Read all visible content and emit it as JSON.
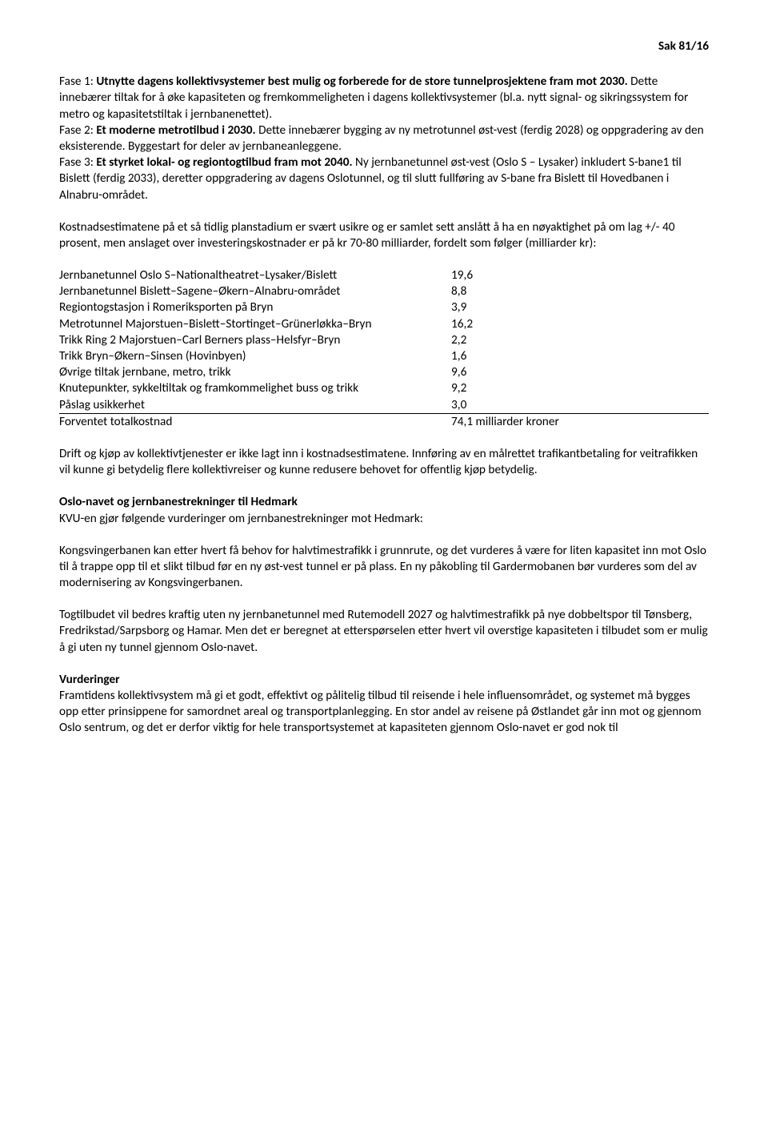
{
  "header": {
    "case_no": "Sak 81/16"
  },
  "p1": {
    "lead": "Fase 1: ",
    "bold1": "Utnytte dagens kollektivsystemer best mulig og forberede for de store tunnelprosjektene fram mot 2030.",
    "t1": " Dette innebærer tiltak for å øke kapasiteten og fremkommeligheten i dagens kollektivsystemer (bl.a. nytt signal- og sikringssystem for metro og kapasitetstiltak i jernbanenettet).",
    "br1": "Fase 2: ",
    "bold2": "Et moderne metrotilbud i 2030.",
    "t2": " Dette innebærer bygging av ny metrotunnel øst-vest (ferdig 2028) og oppgradering av den eksisterende. Byggestart for deler av jernbaneanleggene.",
    "br2": "Fase 3: ",
    "bold3": "Et styrket lokal- og regiontogtilbud fram mot 2040.",
    "t3": " Ny jernbanetunnel øst-vest (Oslo S – Lysaker) inkludert S-bane1 til Bislett (ferdig 2033), deretter oppgradering av dagens Oslotunnel, og til slutt fullføring av S-bane fra Bislett til Hovedbanen i Alnabru-området."
  },
  "p2": "Kostnadsestimatene på et så tidlig planstadium er svært usikre og er samlet sett anslått å ha en nøyaktighet på om lag +/- 40 prosent, men anslaget over investeringskostnader er på kr 70-80 milliarder, fordelt som følger (milliarder kr):",
  "costs": {
    "rows": [
      {
        "label": "Jernbanetunnel Oslo S–Nationaltheatret–Lysaker/Bislett",
        "value": "19,6"
      },
      {
        "label": "Jernbanetunnel Bislett–Sagene–Økern–Alnabru-området",
        "value": "8,8"
      },
      {
        "label": "Regiontogstasjon i Romeriksporten på Bryn",
        "value": "3,9"
      },
      {
        "label": "Metrotunnel Majorstuen–Bislett–Stortinget–Grünerløkka–Bryn",
        "value": "16,2"
      },
      {
        "label": "Trikk Ring 2 Majorstuen–Carl Berners plass–Helsfyr–Bryn",
        "value": "2,2"
      },
      {
        "label": "Trikk Bryn–Økern–Sinsen (Hovinbyen)",
        "value": "1,6"
      },
      {
        "label": "Øvrige tiltak jernbane, metro, trikk",
        "value": "9,6"
      },
      {
        "label": "Knutepunkter, sykkeltiltak og framkommelighet buss og trikk",
        "value": "9,2"
      },
      {
        "label": "Påslag usikkerhet",
        "value": "3,0"
      }
    ],
    "total": {
      "label": "Forventet totalkostnad",
      "value": "74,1 milliarder kroner"
    }
  },
  "p3": "Drift og kjøp av kollektivtjenester er ikke lagt inn i kostnadsestimatene. Innføring av en målrettet trafikantbetaling for veitrafikken vil kunne gi betydelig flere kollektivreiser og kunne redusere behovet for offentlig kjøp betydelig.",
  "s2": {
    "title": "Oslo-navet og jernbanestrekninger til Hedmark",
    "t": "KVU-en gjør følgende vurderinger om jernbanestrekninger mot Hedmark:"
  },
  "p4": "Kongsvingerbanen kan etter hvert få behov for halvtimestrafikk i grunnrute, og det vurderes å være for liten kapasitet inn mot Oslo til å trappe opp til et slikt tilbud før en ny øst-vest tunnel er på plass. En ny påkobling til Gardermobanen bør vurderes som del av modernisering av Kongsvingerbanen.",
  "p5": "Togtilbudet vil bedres kraftig uten ny jernbanetunnel med Rutemodell 2027 og halvtimestrafikk på nye dobbeltspor til Tønsberg, Fredrikstad/Sarpsborg og Hamar. Men det er beregnet at etterspørselen etter hvert vil overstige kapasiteten i tilbudet som er mulig å gi uten ny tunnel gjennom Oslo-navet.",
  "s3": {
    "title": "Vurderinger",
    "t": "Framtidens kollektivsystem må gi et godt, effektivt og pålitelig tilbud til reisende i hele influensområdet, og systemet må bygges opp etter prinsippene for samordnet areal og transportplanlegging. En stor andel av reisene på Østlandet går inn mot og gjennom Oslo sentrum, og det er derfor viktig for hele transportsystemet at kapasiteten gjennom Oslo-navet er god nok til"
  }
}
